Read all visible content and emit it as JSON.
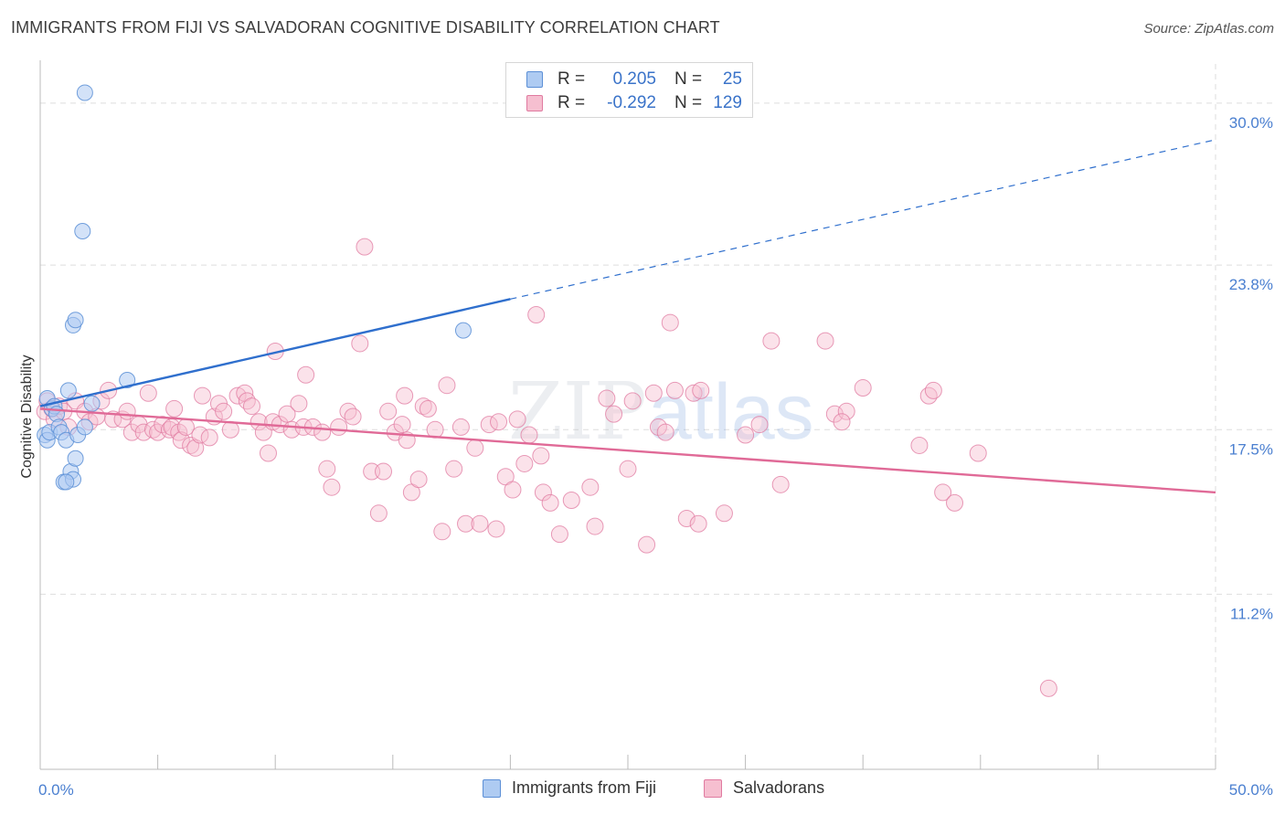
{
  "header": {
    "title": "IMMIGRANTS FROM FIJI VS SALVADORAN COGNITIVE DISABILITY CORRELATION CHART",
    "source": "Source: ZipAtlas.com"
  },
  "legend_stats": [
    {
      "r_label": "R =",
      "r_value": "0.205",
      "n_label": "N =",
      "n_value": "25"
    },
    {
      "r_label": "R =",
      "r_value": "-0.292",
      "n_label": "N =",
      "n_value": "129"
    }
  ],
  "bottom_legend": [
    "Immigrants from Fiji",
    "Salvadorans"
  ],
  "watermark": {
    "zip": "ZIP",
    "atlas": "atlas"
  },
  "colors": {
    "fiji_fill": "#aecbf2",
    "fiji_stroke": "#5b8fd6",
    "fiji_line": "#2f6fcd",
    "salv_fill": "#f6bfd0",
    "salv_stroke": "#e07aa0",
    "salv_line": "#e06a97",
    "tick_text": "#4a7fd0",
    "grid": "#dedede"
  },
  "chart_data": {
    "type": "scatter",
    "title": "IMMIGRANTS FROM FIJI VS SALVADORAN COGNITIVE DISABILITY CORRELATION CHART",
    "xlabel": "",
    "ylabel": "Cognitive Disability",
    "xlim": [
      0,
      50
    ],
    "ylim": [
      4.5,
      31.5
    ],
    "x_tick_labels": [
      {
        "value": 0,
        "label": "0.0%"
      },
      {
        "value": 50,
        "label": "50.0%"
      }
    ],
    "x_minor_ticks": [
      5,
      10,
      15,
      20,
      25,
      30,
      35,
      40,
      45,
      50
    ],
    "y_ticks": [
      {
        "value": 30.0,
        "label": "30.0%"
      },
      {
        "value": 23.8,
        "label": "23.8%"
      },
      {
        "value": 17.5,
        "label": "17.5%"
      },
      {
        "value": 11.2,
        "label": "11.2%"
      }
    ],
    "series": [
      {
        "name": "Immigrants from Fiji",
        "r": 0.205,
        "n": 25,
        "points": [
          [
            0.3,
            18.7
          ],
          [
            0.5,
            18.3
          ],
          [
            0.2,
            17.3
          ],
          [
            0.3,
            17.1
          ],
          [
            0.4,
            17.4
          ],
          [
            0.6,
            18.4
          ],
          [
            0.7,
            18.1
          ],
          [
            0.8,
            17.6
          ],
          [
            0.9,
            17.4
          ],
          [
            1.0,
            15.5
          ],
          [
            1.1,
            17.1
          ],
          [
            1.2,
            19.0
          ],
          [
            1.3,
            15.9
          ],
          [
            1.4,
            15.6
          ],
          [
            1.5,
            16.4
          ],
          [
            1.6,
            17.3
          ],
          [
            1.4,
            21.5
          ],
          [
            1.5,
            21.7
          ],
          [
            1.8,
            25.1
          ],
          [
            1.9,
            30.4
          ],
          [
            1.9,
            17.6
          ],
          [
            2.2,
            18.5
          ],
          [
            3.7,
            19.4
          ],
          [
            18.0,
            21.3
          ],
          [
            1.1,
            15.5
          ]
        ],
        "trend": {
          "x": [
            0,
            20
          ],
          "y": [
            18.4,
            22.5
          ],
          "dashed_extension_to": [
            50,
            28.6
          ]
        }
      },
      {
        "name": "Salvadorans",
        "r": -0.292,
        "n": 129,
        "points": [
          [
            0.2,
            18.2
          ],
          [
            0.3,
            18.6
          ],
          [
            0.5,
            18.3
          ],
          [
            0.6,
            17.9
          ],
          [
            0.8,
            18.4
          ],
          [
            1.0,
            18.2
          ],
          [
            1.2,
            17.6
          ],
          [
            1.5,
            18.6
          ],
          [
            1.9,
            18.2
          ],
          [
            2.1,
            17.8
          ],
          [
            2.4,
            18.0
          ],
          [
            2.6,
            18.6
          ],
          [
            2.9,
            19.0
          ],
          [
            3.1,
            17.9
          ],
          [
            3.5,
            17.9
          ],
          [
            3.7,
            18.2
          ],
          [
            3.9,
            17.4
          ],
          [
            4.2,
            17.7
          ],
          [
            4.4,
            17.4
          ],
          [
            4.6,
            18.9
          ],
          [
            4.8,
            17.5
          ],
          [
            5.0,
            17.4
          ],
          [
            5.2,
            17.7
          ],
          [
            5.5,
            17.5
          ],
          [
            5.6,
            17.6
          ],
          [
            5.7,
            18.3
          ],
          [
            5.9,
            17.4
          ],
          [
            6.0,
            17.1
          ],
          [
            6.2,
            17.6
          ],
          [
            6.4,
            16.9
          ],
          [
            6.6,
            16.8
          ],
          [
            6.8,
            17.3
          ],
          [
            6.9,
            18.8
          ],
          [
            7.2,
            17.2
          ],
          [
            7.4,
            18.0
          ],
          [
            7.6,
            18.5
          ],
          [
            7.8,
            18.2
          ],
          [
            8.1,
            17.5
          ],
          [
            8.4,
            18.8
          ],
          [
            8.7,
            18.9
          ],
          [
            8.8,
            18.6
          ],
          [
            9.0,
            18.4
          ],
          [
            9.3,
            17.8
          ],
          [
            9.5,
            17.4
          ],
          [
            9.7,
            16.6
          ],
          [
            9.9,
            17.8
          ],
          [
            10.2,
            17.7
          ],
          [
            10.5,
            18.1
          ],
          [
            10.7,
            17.5
          ],
          [
            11.0,
            18.5
          ],
          [
            11.2,
            17.6
          ],
          [
            11.6,
            17.6
          ],
          [
            12.0,
            17.4
          ],
          [
            12.2,
            16.0
          ],
          [
            12.4,
            15.3
          ],
          [
            12.7,
            17.6
          ],
          [
            13.1,
            18.2
          ],
          [
            13.3,
            18.0
          ],
          [
            13.6,
            20.8
          ],
          [
            13.8,
            24.5
          ],
          [
            14.1,
            15.9
          ],
          [
            14.4,
            14.3
          ],
          [
            14.6,
            15.9
          ],
          [
            14.8,
            18.2
          ],
          [
            15.1,
            17.4
          ],
          [
            15.4,
            17.7
          ],
          [
            15.6,
            17.1
          ],
          [
            15.8,
            15.1
          ],
          [
            16.1,
            15.6
          ],
          [
            16.3,
            18.4
          ],
          [
            16.5,
            18.3
          ],
          [
            16.8,
            17.5
          ],
          [
            17.1,
            13.6
          ],
          [
            17.3,
            19.2
          ],
          [
            17.6,
            16.0
          ],
          [
            17.9,
            17.6
          ],
          [
            18.1,
            13.9
          ],
          [
            18.5,
            16.8
          ],
          [
            18.7,
            13.9
          ],
          [
            19.1,
            17.7
          ],
          [
            19.4,
            13.7
          ],
          [
            19.5,
            17.8
          ],
          [
            19.8,
            15.7
          ],
          [
            20.1,
            15.2
          ],
          [
            20.3,
            17.9
          ],
          [
            20.6,
            16.2
          ],
          [
            20.8,
            17.3
          ],
          [
            21.1,
            21.9
          ],
          [
            21.4,
            15.1
          ],
          [
            21.7,
            14.7
          ],
          [
            22.1,
            13.5
          ],
          [
            22.6,
            14.8
          ],
          [
            23.4,
            15.3
          ],
          [
            23.6,
            13.8
          ],
          [
            24.1,
            18.7
          ],
          [
            24.4,
            18.1
          ],
          [
            25.0,
            16.0
          ],
          [
            25.2,
            18.6
          ],
          [
            25.8,
            13.1
          ],
          [
            26.3,
            17.6
          ],
          [
            26.6,
            17.4
          ],
          [
            26.8,
            21.6
          ],
          [
            27.0,
            19.0
          ],
          [
            27.5,
            14.1
          ],
          [
            27.8,
            18.9
          ],
          [
            28.0,
            13.9
          ],
          [
            28.1,
            19.0
          ],
          [
            29.1,
            14.3
          ],
          [
            30.6,
            17.7
          ],
          [
            31.1,
            20.9
          ],
          [
            31.5,
            15.4
          ],
          [
            33.4,
            20.9
          ],
          [
            33.8,
            18.1
          ],
          [
            34.3,
            18.2
          ],
          [
            37.4,
            16.9
          ],
          [
            37.8,
            18.8
          ],
          [
            38.4,
            15.1
          ],
          [
            38.9,
            14.7
          ],
          [
            39.9,
            16.6
          ],
          [
            42.9,
            7.6
          ],
          [
            35.0,
            19.1
          ],
          [
            38.0,
            19.0
          ],
          [
            10.0,
            20.5
          ],
          [
            11.3,
            19.6
          ],
          [
            15.5,
            18.8
          ],
          [
            21.3,
            16.5
          ],
          [
            26.1,
            18.9
          ],
          [
            34.1,
            17.8
          ],
          [
            30.0,
            17.3
          ]
        ],
        "trend": {
          "x": [
            0,
            50
          ],
          "y": [
            18.3,
            15.1
          ]
        }
      }
    ],
    "legend_placement": "top-center, bottom-center"
  }
}
